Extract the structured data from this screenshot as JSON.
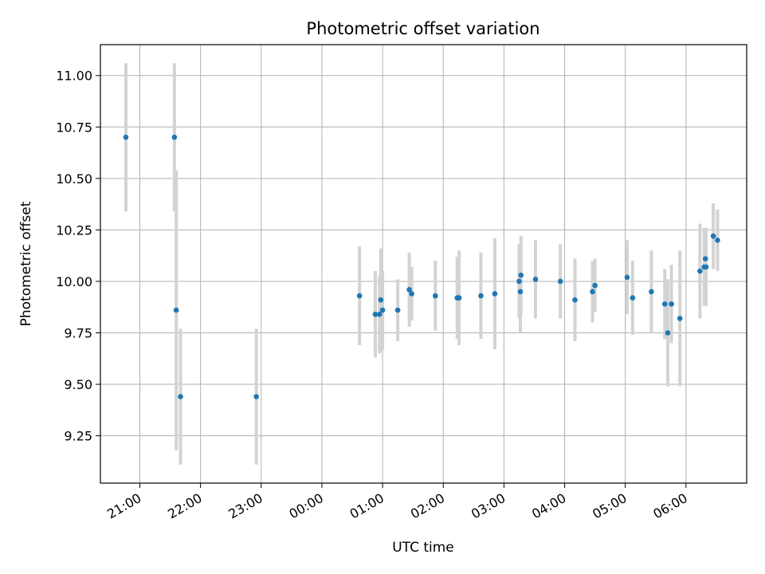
{
  "chart_data": {
    "type": "scatter",
    "title": "Photometric offset variation",
    "xlabel": "UTC time",
    "ylabel": "Photometric offset",
    "grid": true,
    "xlim": [
      20.35,
      31.0
    ],
    "ylim": [
      9.02,
      11.15
    ],
    "x_ticks": [
      {
        "value": 21,
        "label": "21:00"
      },
      {
        "value": 22,
        "label": "22:00"
      },
      {
        "value": 23,
        "label": "23:00"
      },
      {
        "value": 24,
        "label": "00:00"
      },
      {
        "value": 25,
        "label": "01:00"
      },
      {
        "value": 26,
        "label": "02:00"
      },
      {
        "value": 27,
        "label": "03:00"
      },
      {
        "value": 28,
        "label": "04:00"
      },
      {
        "value": 29,
        "label": "05:00"
      },
      {
        "value": 30,
        "label": "06:00"
      }
    ],
    "y_ticks": [
      {
        "value": 9.25,
        "label": "9.25"
      },
      {
        "value": 9.5,
        "label": "9.50"
      },
      {
        "value": 9.75,
        "label": "9.75"
      },
      {
        "value": 10.0,
        "label": "10.00"
      },
      {
        "value": 10.25,
        "label": "10.25"
      },
      {
        "value": 10.5,
        "label": "10.50"
      },
      {
        "value": 10.75,
        "label": "10.75"
      },
      {
        "value": 11.0,
        "label": "11.00"
      }
    ],
    "colors": {
      "marker": "#1f77b4",
      "errorbar": "#d3d3d3",
      "grid": "#b0b0b0"
    },
    "points": [
      {
        "x": 20.77,
        "y": 10.7,
        "err": 0.36
      },
      {
        "x": 21.57,
        "y": 10.7,
        "err": 0.36
      },
      {
        "x": 21.6,
        "y": 9.86,
        "err": 0.68
      },
      {
        "x": 21.67,
        "y": 9.44,
        "err": 0.33
      },
      {
        "x": 22.92,
        "y": 9.44,
        "err": 0.33
      },
      {
        "x": 24.62,
        "y": 9.93,
        "err": 0.24
      },
      {
        "x": 24.88,
        "y": 9.84,
        "err": 0.21
      },
      {
        "x": 24.95,
        "y": 9.84,
        "err": 0.19
      },
      {
        "x": 24.97,
        "y": 9.91,
        "err": 0.25
      },
      {
        "x": 25.0,
        "y": 9.86,
        "err": 0.19
      },
      {
        "x": 25.25,
        "y": 9.86,
        "err": 0.15
      },
      {
        "x": 25.44,
        "y": 9.96,
        "err": 0.18
      },
      {
        "x": 25.48,
        "y": 9.94,
        "err": 0.13
      },
      {
        "x": 25.87,
        "y": 9.93,
        "err": 0.17
      },
      {
        "x": 26.23,
        "y": 9.92,
        "err": 0.2
      },
      {
        "x": 26.26,
        "y": 9.92,
        "err": 0.23
      },
      {
        "x": 26.62,
        "y": 9.93,
        "err": 0.21
      },
      {
        "x": 26.85,
        "y": 9.94,
        "err": 0.27
      },
      {
        "x": 27.25,
        "y": 10.0,
        "err": 0.18
      },
      {
        "x": 27.27,
        "y": 9.95,
        "err": 0.2
      },
      {
        "x": 27.28,
        "y": 10.03,
        "err": 0.19
      },
      {
        "x": 27.52,
        "y": 10.01,
        "err": 0.19
      },
      {
        "x": 27.93,
        "y": 10.0,
        "err": 0.18
      },
      {
        "x": 28.17,
        "y": 9.91,
        "err": 0.2
      },
      {
        "x": 28.46,
        "y": 9.95,
        "err": 0.15
      },
      {
        "x": 28.5,
        "y": 9.98,
        "err": 0.13
      },
      {
        "x": 29.03,
        "y": 10.02,
        "err": 0.18
      },
      {
        "x": 29.12,
        "y": 9.92,
        "err": 0.18
      },
      {
        "x": 29.43,
        "y": 9.95,
        "err": 0.2
      },
      {
        "x": 29.65,
        "y": 9.89,
        "err": 0.17
      },
      {
        "x": 29.7,
        "y": 9.75,
        "err": 0.26
      },
      {
        "x": 29.76,
        "y": 9.89,
        "err": 0.19
      },
      {
        "x": 29.9,
        "y": 9.82,
        "err": 0.33
      },
      {
        "x": 30.23,
        "y": 10.05,
        "err": 0.23
      },
      {
        "x": 30.3,
        "y": 10.07,
        "err": 0.19
      },
      {
        "x": 30.32,
        "y": 10.11,
        "err": 0.15
      },
      {
        "x": 30.33,
        "y": 10.07,
        "err": 0.19
      },
      {
        "x": 30.45,
        "y": 10.22,
        "err": 0.16
      },
      {
        "x": 30.52,
        "y": 10.2,
        "err": 0.15
      }
    ]
  }
}
